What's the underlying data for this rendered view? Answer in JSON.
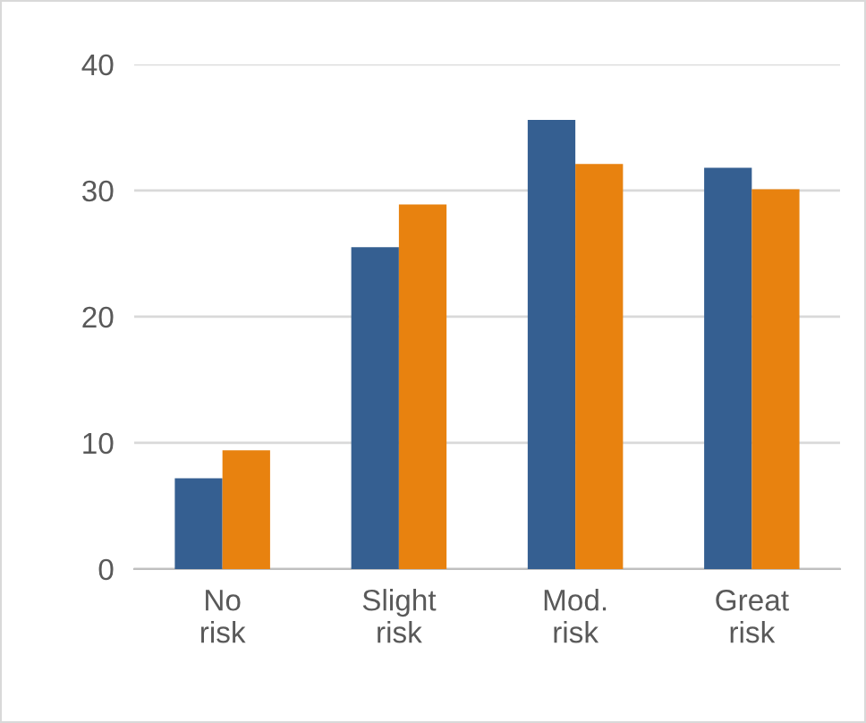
{
  "chart_data": {
    "type": "bar",
    "categories": [
      "No risk",
      "Slight risk",
      "Mod. risk",
      "Great risk"
    ],
    "series": [
      {
        "color": "#355f91",
        "values": [
          7.2,
          25.5,
          35.6,
          31.8
        ]
      },
      {
        "color": "#e8820f",
        "values": [
          9.4,
          28.9,
          32.1,
          30.1
        ]
      }
    ],
    "ylim": [
      0,
      40
    ],
    "yticks": [
      0,
      10,
      20,
      30,
      40
    ],
    "grid": "y",
    "legend": false
  }
}
